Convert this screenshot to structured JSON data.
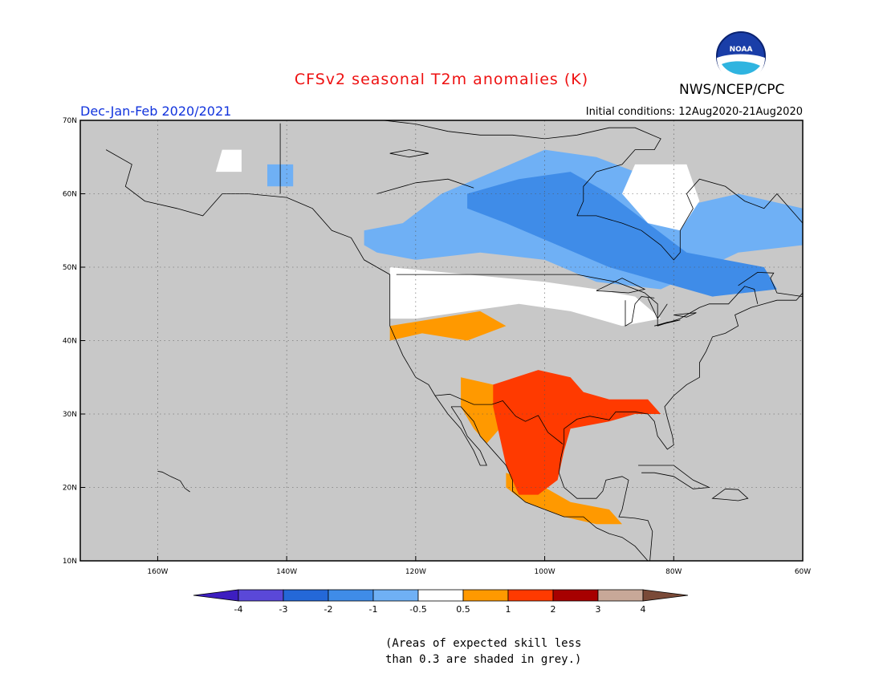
{
  "header": {
    "title": "CFSv2 seasonal T2m anomalies (K)",
    "agency": "NWS/NCEP/CPC",
    "period": "Dec-Jan-Feb 2020/2021",
    "initial_conditions": "Initial conditions: 12Aug2020-21Aug2020",
    "logo_text": "NOAA"
  },
  "colors": {
    "title": "#ee1111",
    "period": "#1133dd",
    "land_grey": "#c8c8c8",
    "coast": "#000000"
  },
  "map": {
    "lon_range": [
      -172,
      -60
    ],
    "lat_range": [
      10,
      70
    ],
    "x_ticks": [
      {
        "lon": -160,
        "label": "160W"
      },
      {
        "lon": -140,
        "label": "140W"
      },
      {
        "lon": -120,
        "label": "120W"
      },
      {
        "lon": -100,
        "label": "100W"
      },
      {
        "lon": -80,
        "label": "80W"
      },
      {
        "lon": -60,
        "label": "60W"
      }
    ],
    "y_ticks": [
      {
        "lat": 10,
        "label": "10N"
      },
      {
        "lat": 20,
        "label": "20N"
      },
      {
        "lat": 30,
        "label": "30N"
      },
      {
        "lat": 40,
        "label": "40N"
      },
      {
        "lat": 50,
        "label": "50N"
      },
      {
        "lat": 60,
        "label": "60N"
      },
      {
        "lat": 70,
        "label": "70N"
      }
    ],
    "anomaly_regions": [
      {
        "name": "white-alaska-north",
        "color": "#ffffff",
        "lonlat": [
          [
            -150,
            66
          ],
          [
            -147,
            66
          ],
          [
            -147,
            63
          ],
          [
            -151,
            63
          ]
        ]
      },
      {
        "name": "blue-yukon",
        "color": "#6fb0f5",
        "lonlat": [
          [
            -143,
            64
          ],
          [
            -139,
            64
          ],
          [
            -139,
            61
          ],
          [
            -143,
            61
          ]
        ]
      },
      {
        "name": "blue-canada-broad",
        "color": "#6fb0f5",
        "lonlat": [
          [
            -128,
            55
          ],
          [
            -122,
            56
          ],
          [
            -116,
            60
          ],
          [
            -108,
            63
          ],
          [
            -100,
            66
          ],
          [
            -92,
            65
          ],
          [
            -86,
            63
          ],
          [
            -80,
            58
          ],
          [
            -70,
            60
          ],
          [
            -60,
            58
          ],
          [
            -60,
            53
          ],
          [
            -70,
            52
          ],
          [
            -82,
            47
          ],
          [
            -92,
            48
          ],
          [
            -100,
            51
          ],
          [
            -110,
            52
          ],
          [
            -120,
            51
          ],
          [
            -126,
            52
          ],
          [
            -128,
            53
          ]
        ]
      },
      {
        "name": "blue-canada-core",
        "color": "#3f8ce8",
        "lonlat": [
          [
            -112,
            60
          ],
          [
            -104,
            62
          ],
          [
            -96,
            63
          ],
          [
            -90,
            60
          ],
          [
            -84,
            56
          ],
          [
            -78,
            52
          ],
          [
            -72,
            51
          ],
          [
            -66,
            50
          ],
          [
            -64,
            47
          ],
          [
            -74,
            46
          ],
          [
            -82,
            48
          ],
          [
            -90,
            50
          ],
          [
            -98,
            53
          ],
          [
            -106,
            56
          ],
          [
            -112,
            58
          ]
        ]
      },
      {
        "name": "white-hudson",
        "color": "#ffffff",
        "lonlat": [
          [
            -86,
            64
          ],
          [
            -78,
            64
          ],
          [
            -76,
            59
          ],
          [
            -79,
            55
          ],
          [
            -84,
            56
          ],
          [
            -88,
            60
          ]
        ]
      },
      {
        "name": "white-north-us",
        "color": "#ffffff",
        "lonlat": [
          [
            -124,
            50
          ],
          [
            -112,
            49
          ],
          [
            -100,
            48
          ],
          [
            -92,
            47
          ],
          [
            -86,
            46
          ],
          [
            -82,
            43
          ],
          [
            -88,
            42
          ],
          [
            -96,
            44
          ],
          [
            -104,
            45
          ],
          [
            -112,
            44
          ],
          [
            -120,
            43
          ],
          [
            -124,
            43
          ]
        ]
      },
      {
        "name": "orange-great-basin",
        "color": "#ff9900",
        "lonlat": [
          [
            -124,
            42
          ],
          [
            -117,
            43
          ],
          [
            -110,
            44
          ],
          [
            -106,
            42
          ],
          [
            -112,
            40
          ],
          [
            -119,
            41
          ],
          [
            -124,
            40
          ]
        ]
      },
      {
        "name": "orange-southwest",
        "color": "#ff9900",
        "lonlat": [
          [
            -113,
            35
          ],
          [
            -108,
            34
          ],
          [
            -104,
            33
          ],
          [
            -106,
            29
          ],
          [
            -109,
            26
          ],
          [
            -111,
            28
          ],
          [
            -113,
            31
          ]
        ]
      },
      {
        "name": "orange-mexico-south",
        "color": "#ff9900",
        "lonlat": [
          [
            -106,
            22
          ],
          [
            -100,
            20
          ],
          [
            -96,
            18
          ],
          [
            -90,
            17
          ],
          [
            -88,
            15
          ],
          [
            -92,
            15
          ],
          [
            -97,
            16
          ],
          [
            -103,
            18
          ],
          [
            -106,
            20
          ]
        ]
      },
      {
        "name": "red-texas-mexico",
        "color": "#ff3a00",
        "lonlat": [
          [
            -108,
            34
          ],
          [
            -101,
            36
          ],
          [
            -96,
            35
          ],
          [
            -94,
            33
          ],
          [
            -90,
            32
          ],
          [
            -84,
            32
          ],
          [
            -82,
            30
          ],
          [
            -86,
            30
          ],
          [
            -90,
            29
          ],
          [
            -96,
            28
          ],
          [
            -97,
            25
          ],
          [
            -98,
            21
          ],
          [
            -101,
            19
          ],
          [
            -104,
            19
          ],
          [
            -106,
            23
          ],
          [
            -107,
            27
          ],
          [
            -108,
            31
          ]
        ]
      }
    ]
  },
  "colorbar": {
    "labels": [
      "-4",
      "-3",
      "-2",
      "-1",
      "-0.5",
      "0.5",
      "1",
      "2",
      "3",
      "4"
    ],
    "colors": [
      "#3d1ec0",
      "#5a48d8",
      "#2468d8",
      "#3f8ce8",
      "#6fb0f5",
      "#ffffff",
      "#ff9900",
      "#ff3a00",
      "#a70000",
      "#c8a898",
      "#7a4a38"
    ]
  },
  "note": {
    "line1": "(Areas of expected skill less",
    "line2": "than 0.3 are shaded in grey.)"
  }
}
